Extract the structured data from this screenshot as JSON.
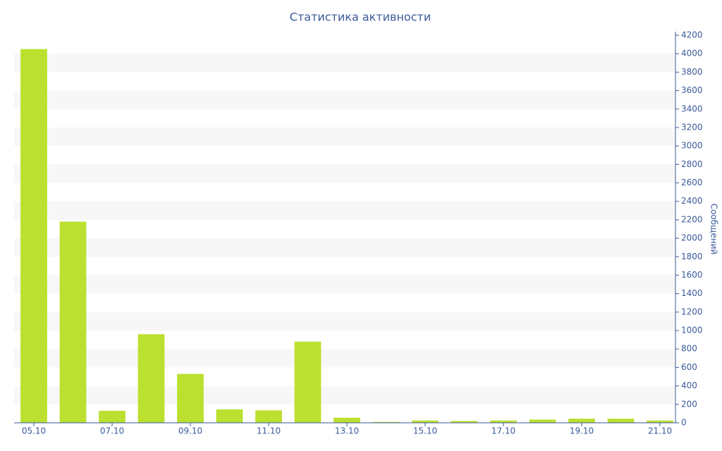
{
  "chart_data": {
    "type": "bar",
    "title": "Статистика активности",
    "y_label": "Сообщений",
    "categories": [
      "05.10",
      null,
      "07.10",
      null,
      "09.10",
      null,
      "11.10",
      null,
      "13.10",
      null,
      "15.10",
      null,
      "17.10",
      null,
      "19.10",
      null,
      "21.10"
    ],
    "values": [
      4050,
      2180,
      130,
      960,
      530,
      145,
      135,
      880,
      55,
      10,
      25,
      20,
      25,
      35,
      45,
      45,
      25
    ],
    "color": "#bbe02f",
    "ylim": [
      0,
      4200
    ],
    "yticks": [
      0,
      200,
      400,
      600,
      800,
      1000,
      1200,
      1400,
      1600,
      1800,
      2000,
      2200,
      2400,
      2600,
      2800,
      3000,
      3200,
      3400,
      3600,
      3800,
      4000,
      4200
    ],
    "grid": "bands",
    "y_axis_side": "right"
  }
}
